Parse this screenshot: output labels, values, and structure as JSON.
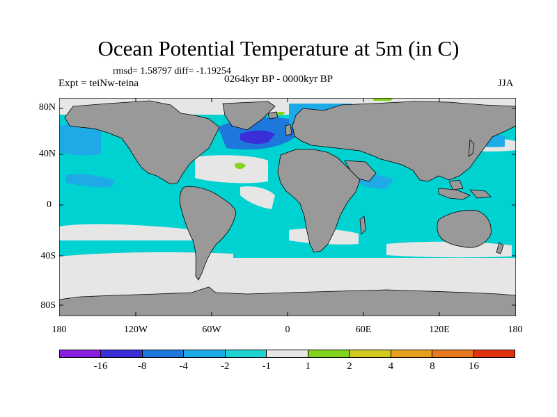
{
  "title": "Ocean Potential Temperature at 5m (in C)",
  "stats": "rmsd= 1.58797 diff= -1.19254",
  "experiment": "Expt = teiNw-teina",
  "period": "0264kyr BP - 0000kyr BP",
  "season": "JJA",
  "lat_ticks": [
    "80N",
    "40N",
    "0",
    "40S",
    "80S"
  ],
  "lon_ticks": [
    "180",
    "120W",
    "60W",
    "0",
    "60E",
    "120E",
    "180"
  ],
  "colorbar": {
    "colors": [
      "#8a1ee0",
      "#3a2ed8",
      "#1e78dc",
      "#1eaae6",
      "#1ed2d2",
      "#e6e6e6",
      "#82d21e",
      "#d2c81e",
      "#e6a01e",
      "#e6781e",
      "#e0320f"
    ],
    "labels": [
      "-16",
      "-8",
      "-4",
      "-2",
      "-1",
      "1",
      "2",
      "4",
      "8",
      "16"
    ]
  },
  "colors": {
    "land": "#999999",
    "ocean_base": "#00d2d2",
    "neutral": "#e6e6e6"
  }
}
